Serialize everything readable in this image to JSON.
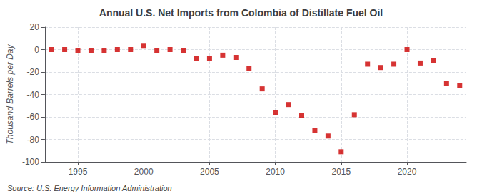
{
  "chart_data": {
    "type": "scatter",
    "title": "Annual U.S. Net Imports from Colombia of Distillate Fuel Oil",
    "ylabel": "Thousand Barrels per Day",
    "annotations": [
      "Source: U.S. Energy Information Administration"
    ],
    "x": [
      1993,
      1994,
      1995,
      1996,
      1997,
      1998,
      1999,
      2000,
      2001,
      2002,
      2003,
      2004,
      2005,
      2006,
      2007,
      2008,
      2009,
      2010,
      2011,
      2012,
      2013,
      2014,
      2015,
      2016,
      2017,
      2018,
      2019,
      2020,
      2021,
      2022,
      2023,
      2024
    ],
    "values": [
      0,
      0,
      -1,
      -1,
      -1,
      0,
      0,
      3,
      -1,
      0,
      -1,
      -8,
      -8,
      -5,
      -7,
      -17,
      -35,
      -56,
      -49,
      -59,
      -72,
      -77,
      -91,
      -58,
      -13,
      -16,
      -13,
      0,
      -12,
      -10,
      -30,
      -32
    ],
    "color": "#cc0000",
    "marker": "square",
    "xlim": [
      1992.5,
      2024.5
    ],
    "xticks": [
      1995,
      2000,
      2005,
      2010,
      2015,
      2020
    ],
    "ylim": [
      -100,
      20
    ],
    "yticks": [
      -100,
      -80,
      -60,
      -40,
      -20,
      0,
      20
    ],
    "grid": true
  }
}
